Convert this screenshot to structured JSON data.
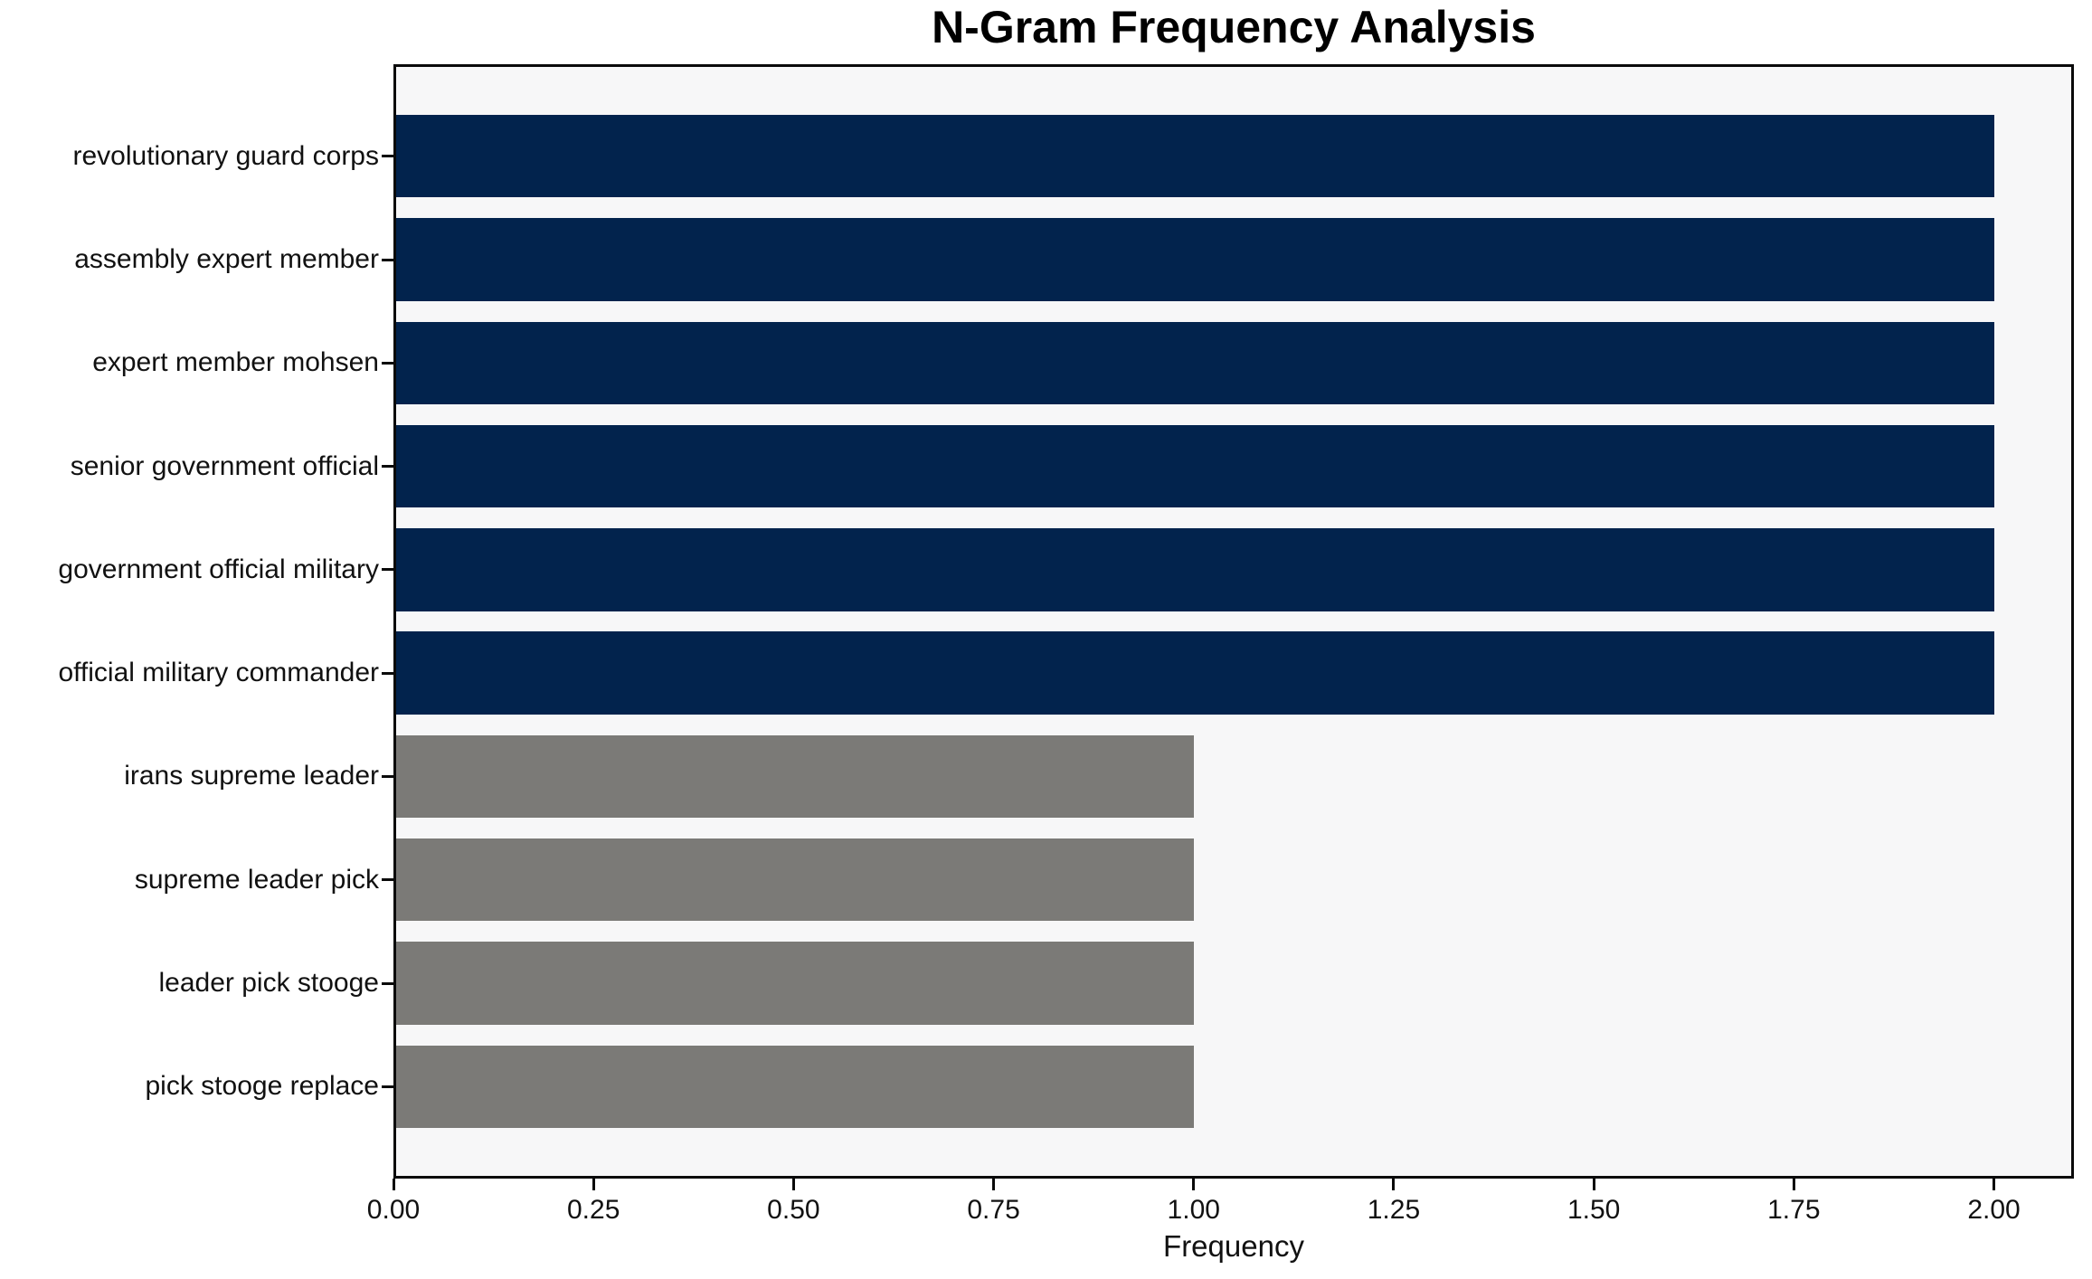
{
  "chart_data": {
    "type": "bar",
    "orientation": "horizontal",
    "title": "N-Gram Frequency Analysis",
    "xlabel": "Frequency",
    "ylabel": "",
    "categories": [
      "revolutionary guard corps",
      "assembly expert member",
      "expert member mohsen",
      "senior government official",
      "government official military",
      "official military commander",
      "irans supreme leader",
      "supreme leader pick",
      "leader pick stooge",
      "pick stooge replace"
    ],
    "values": [
      2,
      2,
      2,
      2,
      2,
      2,
      1,
      1,
      1,
      1
    ],
    "bar_colors": [
      "#02234d",
      "#02234d",
      "#02234d",
      "#02234d",
      "#02234d",
      "#02234d",
      "#7b7a77",
      "#7b7a77",
      "#7b7a77",
      "#7b7a77"
    ],
    "xlim": [
      0,
      2.1
    ],
    "xticks": [
      {
        "value": 0.0,
        "label": "0.00"
      },
      {
        "value": 0.25,
        "label": "0.25"
      },
      {
        "value": 0.5,
        "label": "0.50"
      },
      {
        "value": 0.75,
        "label": "0.75"
      },
      {
        "value": 1.0,
        "label": "1.00"
      },
      {
        "value": 1.25,
        "label": "1.25"
      },
      {
        "value": 1.5,
        "label": "1.50"
      },
      {
        "value": 1.75,
        "label": "1.75"
      },
      {
        "value": 2.0,
        "label": "2.00"
      }
    ],
    "grid": false,
    "legend": null,
    "colors": {
      "bar_primary": "#02234d",
      "bar_secondary": "#7b7a77",
      "plot_background": "#f7f7f8",
      "figure_background": "#ffffff",
      "spine": "#0a0a0a",
      "text": "#111111"
    }
  }
}
